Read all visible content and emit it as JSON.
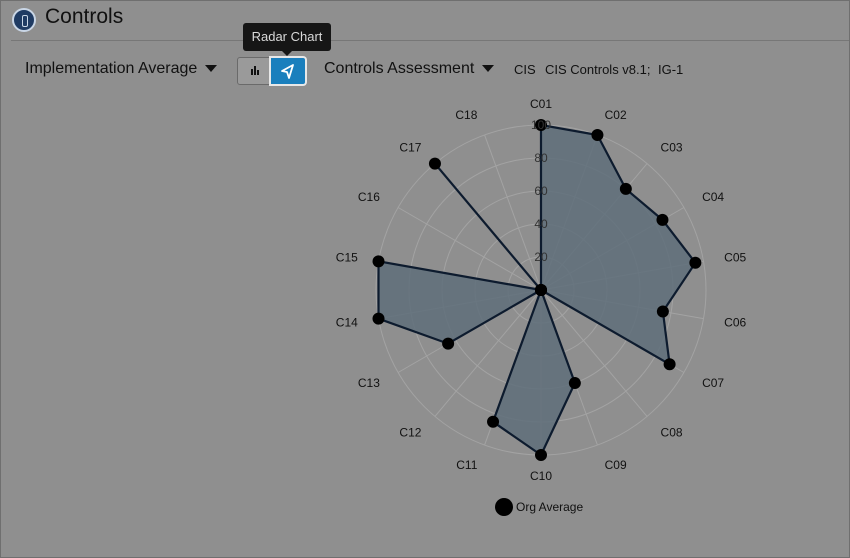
{
  "header": {
    "title": "Controls"
  },
  "toolbar": {
    "metric_label": "Implementation Average",
    "tooltip": "Radar Chart",
    "assessment_label": "Controls Assessment",
    "framework_short": "CIS",
    "framework_name": "CIS Controls v8.1;",
    "group": "IG-1"
  },
  "colors": {
    "background": "#8f8f8f",
    "series_fill": "#5f6e7a",
    "series_stroke": "#0d1b2e",
    "point": "#000000",
    "grid": "#a3a3a3",
    "accent": "#1a7fbd"
  },
  "chart_data": {
    "type": "radar",
    "categories": [
      "C01",
      "C02",
      "C03",
      "C04",
      "C05",
      "C06",
      "C07",
      "C08",
      "C09",
      "C10",
      "C11",
      "C12",
      "C13",
      "C14",
      "C15",
      "C16",
      "C17",
      "C18"
    ],
    "series": [
      {
        "name": "Org Average",
        "values": [
          100,
          100,
          80,
          85,
          95,
          75,
          90,
          0,
          60,
          100,
          85,
          0,
          65,
          100,
          100,
          0,
          100,
          0
        ]
      }
    ],
    "rlim": [
      0,
      100
    ],
    "rticks": [
      "20",
      "40",
      "60",
      "80",
      "100"
    ],
    "grid": true,
    "legend": "bottom"
  }
}
